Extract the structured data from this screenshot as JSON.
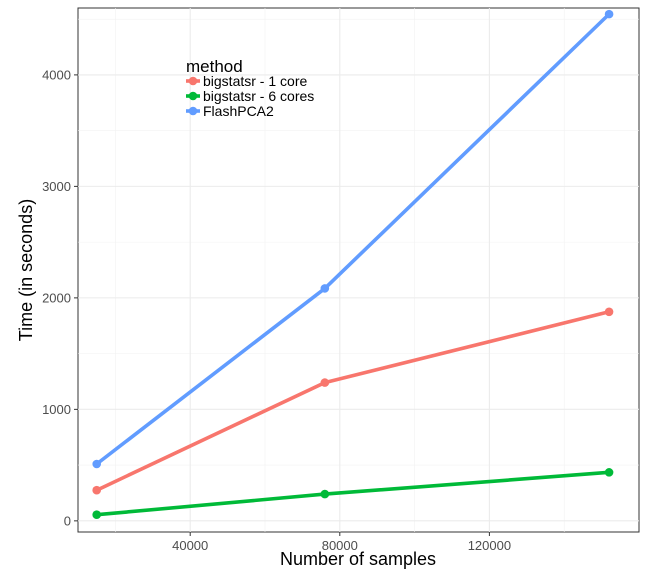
{
  "chart_data": {
    "type": "line",
    "xlabel": "Number of samples",
    "ylabel": "Time (in seconds)",
    "xlim": [
      10000,
      160000
    ],
    "ylim": [
      -100,
      4600
    ],
    "xticks": [
      40000,
      80000,
      120000
    ],
    "yticks": [
      0,
      1000,
      2000,
      3000,
      4000
    ],
    "xtick_labels": [
      "40000",
      "80000",
      "120000"
    ],
    "ytick_labels": [
      "0",
      "1000",
      "2000",
      "3000",
      "4000"
    ],
    "grid": true,
    "legend": {
      "title": "method",
      "placement": "top-left"
    },
    "x": [
      15000,
      76000,
      152000
    ],
    "series": [
      {
        "name": "bigstatsr - 1 core",
        "color": "#F8766D",
        "values": [
          275,
          1240,
          1875
        ]
      },
      {
        "name": "bigstatsr - 6 cores",
        "color": "#00BA38",
        "values": [
          55,
          240,
          435
        ]
      },
      {
        "name": "FlashPCA2",
        "color": "#619CFF",
        "values": [
          510,
          2085,
          4545
        ]
      }
    ]
  }
}
